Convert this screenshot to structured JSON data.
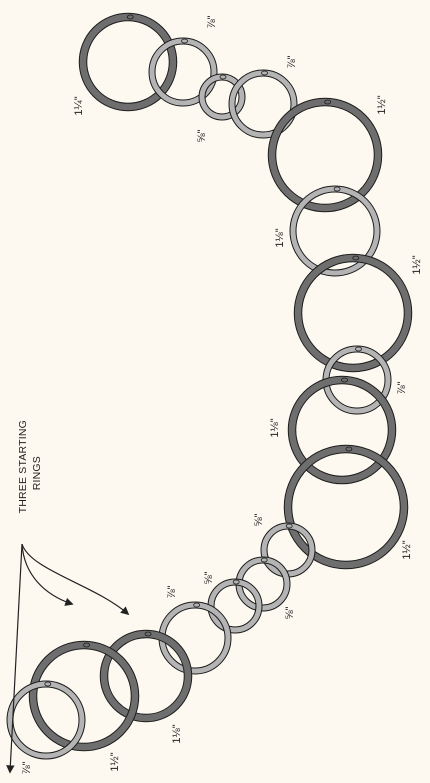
{
  "diagram": {
    "callout": {
      "line1": "THREE STARTING",
      "line2": "RINGS"
    },
    "colors": {
      "background": "#fdf9f0",
      "dark_ring": "#6e6e6e",
      "light_ring": "#b4b4b4",
      "ring_edge": "#1c1c1c",
      "text": "#222222"
    },
    "rings": [
      {
        "id": "r1",
        "size": "1¼\"",
        "tone": "dark"
      },
      {
        "id": "r2",
        "size": "⅞\"",
        "tone": "light"
      },
      {
        "id": "r3",
        "size": "⅝\"",
        "tone": "light"
      },
      {
        "id": "r4",
        "size": "⅞\"",
        "tone": "light"
      },
      {
        "id": "r5",
        "size": "1½\"",
        "tone": "dark"
      },
      {
        "id": "r6",
        "size": "1⅛\"",
        "tone": "light"
      },
      {
        "id": "r7",
        "size": "1½\"",
        "tone": "dark"
      },
      {
        "id": "r8",
        "size": "⅞\"",
        "tone": "light"
      },
      {
        "id": "r9",
        "size": "1⅛\"",
        "tone": "dark"
      },
      {
        "id": "r10",
        "size": "1½\"",
        "tone": "dark"
      },
      {
        "id": "r11",
        "size": "⅝\"",
        "tone": "light"
      },
      {
        "id": "r12",
        "size": "⅝\"",
        "tone": "light"
      },
      {
        "id": "r13",
        "size": "⅝\"",
        "tone": "light"
      },
      {
        "id": "r14",
        "size": "⅞\"",
        "tone": "light"
      },
      {
        "id": "r15",
        "size": "1⅛\"",
        "tone": "dark"
      },
      {
        "id": "r16",
        "size": "1½\"",
        "tone": "dark"
      },
      {
        "id": "r17",
        "size": "⅞\"",
        "tone": "light"
      }
    ]
  }
}
